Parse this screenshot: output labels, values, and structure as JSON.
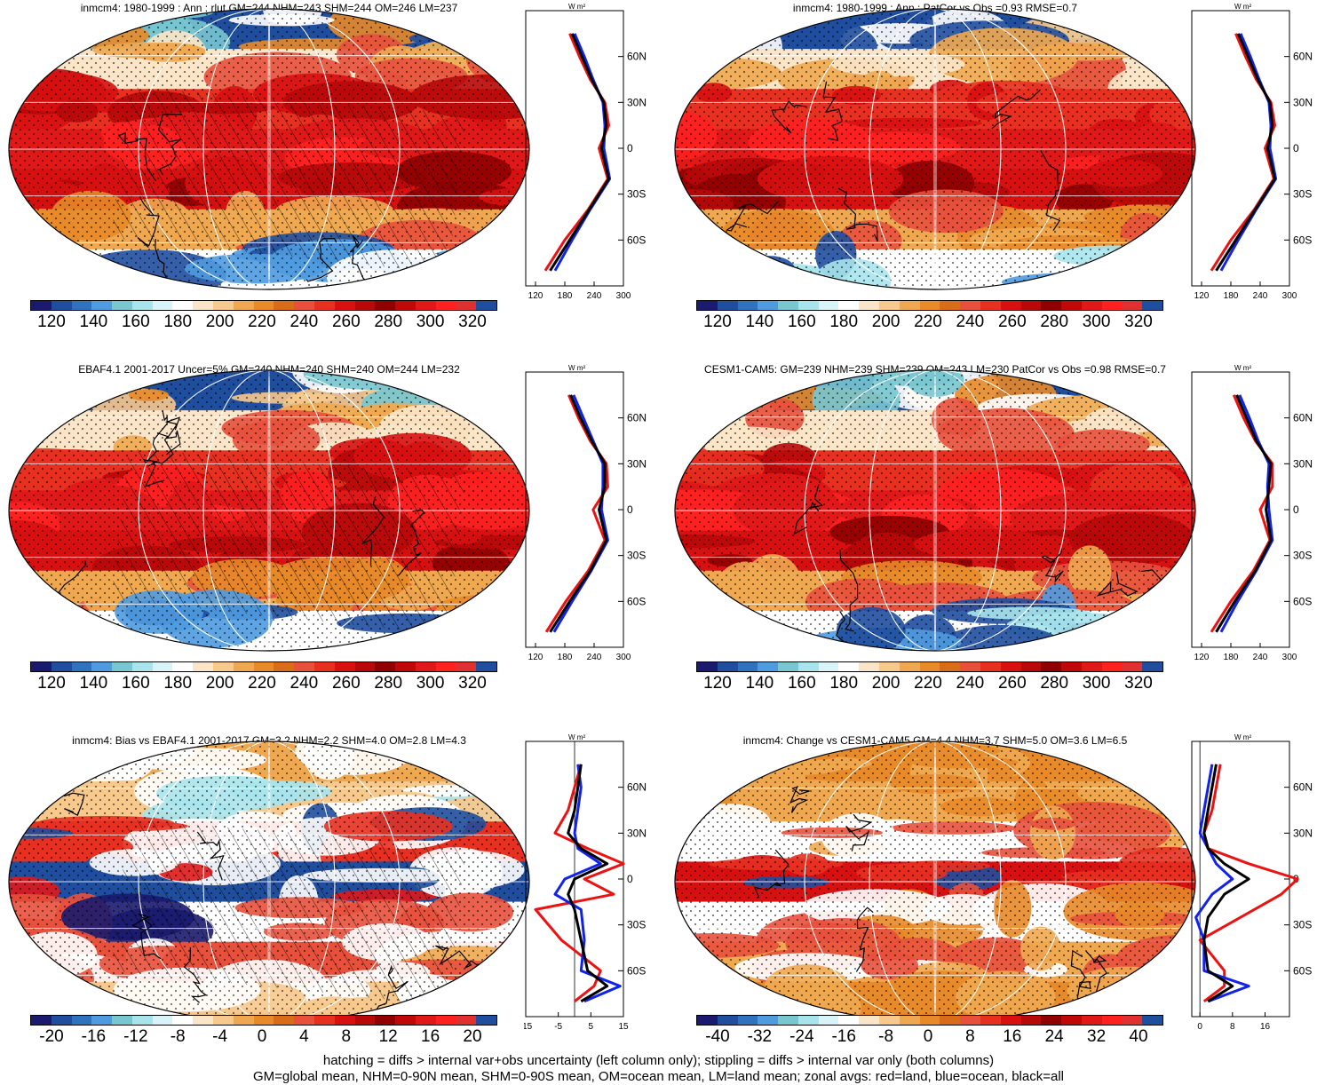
{
  "panels": [
    {
      "id": "p1",
      "title": "inmcm4: 1980-1999 : Ann : rlut GM=244 NHM=243 SHM=244 OM=246 LM=237",
      "kind": "abs",
      "hatch": true
    },
    {
      "id": "p2",
      "title": "inmcm4: 1980-1999 : Ann : PatCor vs Obs =0.93 RMSE=0.7",
      "kind": "abs",
      "hatch": false
    },
    {
      "id": "p3",
      "title": "EBAF4.1 2001-2017 Uncer=5% GM=240 NHM=240 SHM=240 OM=244 LM=232",
      "kind": "abs",
      "hatch": true
    },
    {
      "id": "p4",
      "title": "CESM1-CAM5: GM=239 NHM=239 SHM=239 OM=243 LM=230 PatCor vs Obs =0.98 RMSE=0.7",
      "kind": "abs",
      "hatch": false
    },
    {
      "id": "p5",
      "title": "inmcm4: Bias vs EBAF4.1 2001-2017 GM=3.2 NHM=2.2 SHM=4.0 OM=2.8 LM=4.3",
      "kind": "bias",
      "hatch": true
    },
    {
      "id": "p6",
      "title": "inmcm4: Change vs CESM1-CAM5 GM=4.4 NHM=3.7 SHM=5.0 OM=3.6 LM=6.5",
      "kind": "change",
      "hatch": false
    }
  ],
  "colorbars": {
    "abs": {
      "labels": [
        "120",
        "140",
        "160",
        "180",
        "200",
        "220",
        "240",
        "260",
        "280",
        "300",
        "320"
      ],
      "colors": [
        "#1a1a6e",
        "#1f4e9e",
        "#2f72be",
        "#4f9be0",
        "#78c6d0",
        "#a8e4ec",
        "#d8f4f8",
        "#ffffff",
        "#fbe5c8",
        "#f7c98c",
        "#f0a850",
        "#e88a28",
        "#d86c18",
        "#e8503c",
        "#e83020",
        "#d81010",
        "#b80808",
        "#900000",
        "#c00808",
        "#e01818",
        "#ff2020",
        "#e03030",
        "#1f4e9e"
      ]
    },
    "bias": {
      "labels": [
        "-20",
        "-16",
        "-12",
        "-8",
        "-4",
        "0",
        "4",
        "8",
        "12",
        "16",
        "20"
      ],
      "colors": [
        "#1a1a6e",
        "#1f4e9e",
        "#2f72be",
        "#4f9be0",
        "#78c6d0",
        "#a8e4ec",
        "#d8f4f8",
        "#ffffff",
        "#fbe5c8",
        "#f7c98c",
        "#f0a850",
        "#e88a28",
        "#d86c18",
        "#e8503c",
        "#e83020",
        "#d81010",
        "#b80808",
        "#900000",
        "#c00808",
        "#e01818",
        "#ff2020",
        "#e03030",
        "#1f4e9e"
      ]
    },
    "change": {
      "labels": [
        "-40",
        "-32",
        "-24",
        "-16",
        "-8",
        "0",
        "8",
        "16",
        "24",
        "32",
        "40"
      ],
      "colors": [
        "#1a1a6e",
        "#1f4e9e",
        "#2f72be",
        "#4f9be0",
        "#78c6d0",
        "#a8e4ec",
        "#d8f4f8",
        "#ffffff",
        "#fbe5c8",
        "#f7c98c",
        "#f0a850",
        "#e88a28",
        "#d86c18",
        "#e8503c",
        "#e83020",
        "#d81010",
        "#b80808",
        "#900000",
        "#c00808",
        "#e01818",
        "#ff2020",
        "#e03030",
        "#1f4e9e"
      ]
    }
  },
  "zonal_axes": {
    "unit": "W m²",
    "lat_labels": [
      "60N",
      "30N",
      "0",
      "30S",
      "60S"
    ],
    "abs_xticks": [
      "120",
      "180",
      "240",
      "300"
    ],
    "bias_xticks": [
      "-15",
      "-5",
      "5",
      "15"
    ],
    "change_xticks": [
      "0",
      "8",
      "16"
    ]
  },
  "map_lat_labels": [
    "60N",
    "30N",
    "0",
    "30S",
    "60S"
  ],
  "chart_data": [
    {
      "type": "heatmap",
      "title": "inmcm4: 1980-1999 : Ann : rlut GM=244 NHM=243 SHM=244 OM=246 LM=237",
      "colorbar": [
        120,
        320
      ],
      "zonal_mean": {
        "lat": [
          -80,
          -60,
          -40,
          -20,
          0,
          15,
          30,
          45,
          60,
          75
        ],
        "all": [
          150,
          190,
          230,
          270,
          255,
          265,
          260,
          235,
          215,
          195
        ],
        "land": [
          140,
          180,
          228,
          268,
          250,
          270,
          262,
          232,
          210,
          190
        ],
        "ocean": [
          160,
          195,
          232,
          272,
          260,
          262,
          258,
          238,
          220,
          200
        ]
      }
    },
    {
      "type": "heatmap",
      "title": "inmcm4: 1980-1999 : Ann : PatCor vs Obs =0.93 RMSE=0.7",
      "colorbar": [
        120,
        320
      ],
      "zonal_mean": {
        "lat": [
          -80,
          -60,
          -40,
          -20,
          0,
          15,
          30,
          45,
          60,
          75
        ],
        "all": [
          150,
          190,
          230,
          270,
          255,
          265,
          260,
          235,
          215,
          195
        ],
        "land": [
          140,
          180,
          228,
          268,
          250,
          270,
          262,
          232,
          210,
          190
        ],
        "ocean": [
          160,
          195,
          232,
          272,
          260,
          262,
          258,
          238,
          220,
          200
        ]
      }
    },
    {
      "type": "heatmap",
      "title": "EBAF4.1 2001-2017 Uncer=5% GM=240 NHM=240 SHM=240 OM=244 LM=232",
      "colorbar": [
        120,
        320
      ],
      "zonal_mean": {
        "lat": [
          -80,
          -60,
          -40,
          -20,
          0,
          15,
          30,
          45,
          60,
          75
        ],
        "all": [
          150,
          190,
          232,
          265,
          250,
          262,
          262,
          235,
          212,
          192
        ],
        "land": [
          142,
          182,
          228,
          262,
          238,
          268,
          265,
          232,
          208,
          188
        ],
        "ocean": [
          158,
          195,
          234,
          268,
          255,
          258,
          258,
          238,
          218,
          198
        ]
      }
    },
    {
      "type": "heatmap",
      "title": "CESM1-CAM5: GM=239 NHM=239 SHM=239 OM=243 LM=230 PatCor vs Obs =0.98 RMSE=0.7",
      "colorbar": [
        120,
        320
      ],
      "zonal_mean": {
        "lat": [
          -80,
          -60,
          -40,
          -20,
          0,
          15,
          30,
          45,
          60,
          75
        ],
        "all": [
          150,
          188,
          230,
          262,
          252,
          258,
          262,
          232,
          212,
          192
        ],
        "land": [
          140,
          180,
          226,
          260,
          240,
          265,
          265,
          230,
          206,
          186
        ],
        "ocean": [
          160,
          194,
          232,
          265,
          258,
          255,
          258,
          236,
          218,
          198
        ]
      }
    },
    {
      "type": "heatmap",
      "title": "inmcm4: Bias vs EBAF4.1 2001-2017 GM=3.2 NHM=2.2 SHM=4.0 OM=2.8 LM=4.3",
      "colorbar": [
        -20,
        20
      ],
      "zonal_mean": {
        "lat": [
          -80,
          -70,
          -60,
          -40,
          -20,
          -10,
          0,
          10,
          20,
          30,
          45,
          60,
          75
        ],
        "all": [
          2,
          10,
          4,
          2,
          0,
          -2,
          0,
          10,
          2,
          -2,
          0,
          1,
          2
        ],
        "land": [
          0,
          6,
          8,
          -4,
          -12,
          12,
          3,
          15,
          4,
          -6,
          -2,
          0,
          2
        ],
        "ocean": [
          3,
          14,
          2,
          3,
          2,
          -6,
          -3,
          8,
          1,
          0,
          1,
          2,
          1
        ]
      }
    },
    {
      "type": "heatmap",
      "title": "inmcm4: Change vs CESM1-CAM5 GM=4.4 NHM=3.7 SHM=5.0 OM=3.6 LM=6.5",
      "colorbar": [
        -40,
        40
      ],
      "zonal_mean": {
        "lat": [
          -80,
          -70,
          -60,
          -40,
          -25,
          -10,
          0,
          10,
          20,
          30,
          45,
          60,
          75
        ],
        "all": [
          2,
          8,
          2,
          1,
          2,
          6,
          12,
          6,
          2,
          1,
          2,
          3,
          4
        ],
        "land": [
          1,
          6,
          6,
          0,
          10,
          20,
          24,
          12,
          2,
          1,
          3,
          4,
          5
        ],
        "ocean": [
          2,
          12,
          1,
          1,
          -1,
          3,
          8,
          4,
          2,
          0,
          1,
          2,
          3
        ]
      }
    }
  ],
  "footer": [
    "hatching = diffs > internal var+obs uncertainty (left column only); stippling = diffs > internal var only (both columns)",
    "GM=global mean, NHM=0-90N mean, SHM=0-90S mean, OM=ocean mean, LM=land mean; zonal avgs: red=land, blue=ocean, black=all"
  ]
}
